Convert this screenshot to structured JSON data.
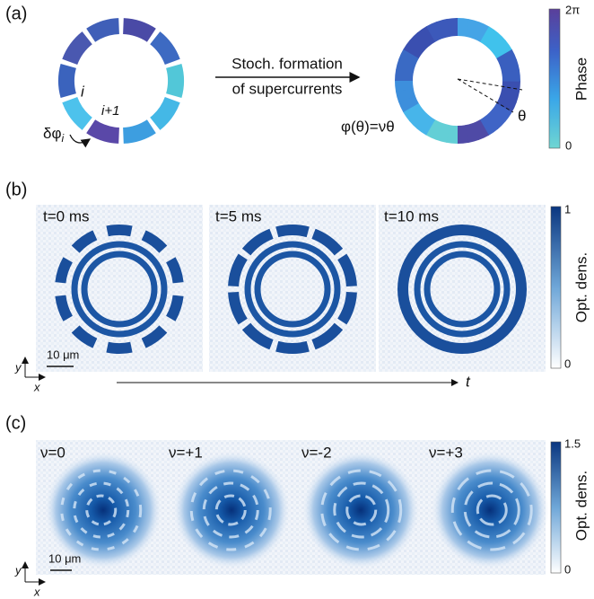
{
  "panel_a": {
    "label": "(a)",
    "site_i": "i",
    "site_i1": "i+1",
    "delta_phi": "δφ",
    "delta_phi_sub": "i",
    "arrow_line1": "Stoch. formation",
    "arrow_line2": "of supercurrents",
    "phase_formula": "φ(θ)=νθ",
    "theta": "θ",
    "colorbar": {
      "title": "Phase",
      "max_label": "2π",
      "min_label": "0"
    }
  },
  "panel_b": {
    "label": "(b)",
    "frames": [
      "t=0 ms",
      "t=5 ms",
      "t=10 ms"
    ],
    "scale_bar": "10 μm",
    "axis_y": "y",
    "axis_x": "x",
    "time_axis": "t",
    "colorbar": {
      "title": "Opt. dens.",
      "max_label": "1",
      "min_label": "0"
    }
  },
  "panel_c": {
    "label": "(c)",
    "winding": [
      "ν=0",
      "ν=+1",
      "ν=-2",
      "ν=+3"
    ],
    "scale_bar": "10 μm",
    "axis_y": "y",
    "axis_x": "x",
    "colorbar": {
      "title": "Opt. dens.",
      "max_label": "1.5",
      "min_label": "0"
    }
  }
}
